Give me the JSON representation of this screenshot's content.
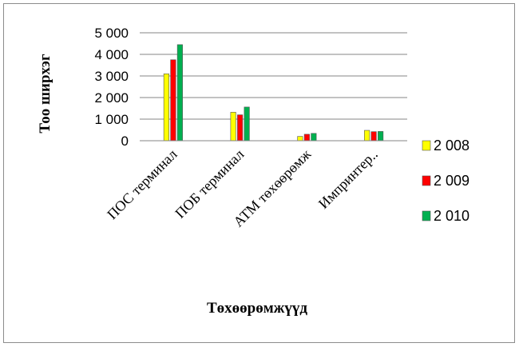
{
  "chart_data": {
    "type": "bar",
    "title": "",
    "xlabel": "Төхөөрөмжүүд",
    "ylabel": "Тоо ширхэг",
    "categories": [
      "ПОС терминал",
      "ПОБ терминал",
      "АТМ төхөөрөмж",
      "Импринтер.."
    ],
    "series": [
      {
        "name": "2 008",
        "color": "#ffff00",
        "values": [
          3100,
          1320,
          200,
          480
        ]
      },
      {
        "name": "2 009",
        "color": "#ff0000",
        "values": [
          3750,
          1200,
          300,
          420
        ]
      },
      {
        "name": "2 010",
        "color": "#00b050",
        "values": [
          4450,
          1560,
          340,
          430
        ]
      }
    ],
    "ylim": [
      0,
      5000
    ],
    "yticks": [
      0,
      1000,
      2000,
      3000,
      4000,
      5000
    ],
    "ytick_labels": [
      "0",
      "1 000",
      "2 000",
      "3 000",
      "4 000",
      "5 000"
    ],
    "grid": true,
    "legend_position": "right"
  }
}
